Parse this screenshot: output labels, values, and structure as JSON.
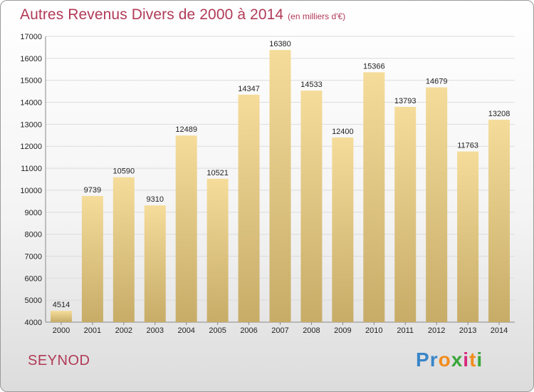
{
  "header": {
    "title": "Autres Revenus Divers de 2000 à 2014",
    "unit": "(en milliers d'€)"
  },
  "footer": {
    "commune": "SEYNOD",
    "logo_letters": [
      "P",
      "r",
      "o",
      "x",
      "i",
      "t",
      "i"
    ],
    "logo_colors": [
      "#3a86c8",
      "#3a86c8",
      "#f28c1e",
      "#3aa63a",
      "#d8287a",
      "#f28c1e",
      "#3aa63a"
    ]
  },
  "chart_data": {
    "type": "bar",
    "title": "Autres Revenus Divers de 2000 à 2014",
    "xlabel": "",
    "ylabel": "",
    "categories": [
      "2000",
      "2001",
      "2002",
      "2003",
      "2004",
      "2005",
      "2006",
      "2007",
      "2008",
      "2009",
      "2010",
      "2011",
      "2012",
      "2013",
      "2014"
    ],
    "values": [
      4514,
      9739,
      10590,
      9310,
      12489,
      10521,
      14347,
      16380,
      14533,
      12400,
      15366,
      13793,
      14679,
      11763,
      13208
    ],
    "ylim": [
      4000,
      17000
    ],
    "yticks": [
      4000,
      5000,
      6000,
      7000,
      8000,
      9000,
      10000,
      11000,
      12000,
      13000,
      14000,
      15000,
      16000,
      17000
    ],
    "grid": true,
    "bar_color_top": "#f5dc9a",
    "bar_color_bottom": "#c7ac68"
  }
}
